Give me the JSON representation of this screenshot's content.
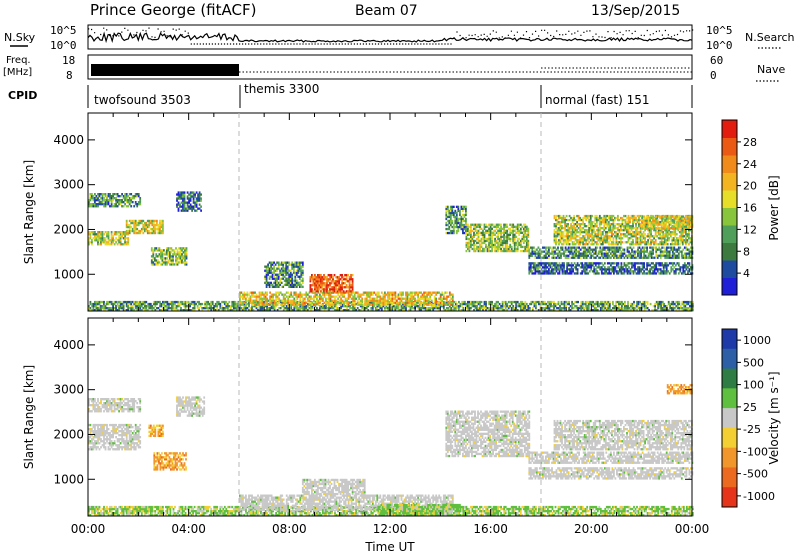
{
  "header": {
    "site": "Prince George (fitACF)",
    "beam": "Beam 07",
    "date": "13/Sep/2015"
  },
  "summary": {
    "nsky_label": "N.Sky",
    "nsky_ticks": [
      "10^5",
      "10^0"
    ],
    "nsearch_label": "N.Search",
    "nsearch_ticks": [
      "10^5",
      "10^0"
    ],
    "freq_label_1": "Freq.",
    "freq_label_2": "[MHz]",
    "freq_ticks": [
      "18",
      "8"
    ],
    "nave_label": "Nave",
    "nave_ticks": [
      "60",
      "0"
    ],
    "cpid_label": "CPID",
    "cpid_segments": [
      {
        "name": "twofsound 3503",
        "start": 0,
        "end": 6
      },
      {
        "name": "themis 3300",
        "start": 6,
        "end": 18
      },
      {
        "name": "normal (fast) 151",
        "start": 18,
        "end": 24
      }
    ]
  },
  "colorbars": {
    "power": {
      "label": "Power [dB]",
      "ticks": [
        "28",
        "24",
        "20",
        "16",
        "12",
        "8",
        "4"
      ],
      "colors": [
        "#1f1fd8",
        "#1e4aa0",
        "#3d7a3f",
        "#4f9e59",
        "#88c43c",
        "#e7de2a",
        "#f2b421",
        "#f08a1a",
        "#ea5a14",
        "#e21d0f"
      ]
    },
    "velocity": {
      "label": "Velocity [m s⁻¹]",
      "ticks": [
        "1000",
        "500",
        "100",
        "25",
        "-25",
        "-100",
        "-500",
        "-1000"
      ],
      "colors": [
        "#1d3aa8",
        "#2c5fa6",
        "#2f7d45",
        "#5fbf3f",
        "#c8c8c8",
        "#f3cf34",
        "#f0962b",
        "#ec6a1f",
        "#e53419"
      ]
    }
  },
  "chart_data": [
    {
      "type": "heatmap",
      "title": "Power",
      "xlabel": "Time UT",
      "ylabel": "Slant Range [km]",
      "xlim": [
        0,
        24
      ],
      "ylim": [
        180,
        4600
      ],
      "xticks": [
        "00:00",
        "04:00",
        "08:00",
        "12:00",
        "16:00",
        "20:00",
        "00:00"
      ],
      "yticks": [
        1000,
        2000,
        3000,
        4000
      ],
      "colorbar_ticks": [
        4,
        8,
        12,
        16,
        20,
        24,
        28
      ],
      "mode_boundaries_ut": [
        6,
        18
      ],
      "regions": [
        {
          "t0": 0.0,
          "t1": 1.6,
          "r0": 1650,
          "r1": 1950,
          "level": 0.5
        },
        {
          "t0": 0.0,
          "t1": 2.1,
          "r0": 2500,
          "r1": 2800,
          "level": 0.3
        },
        {
          "t0": 1.5,
          "t1": 3.0,
          "r0": 1900,
          "r1": 2200,
          "level": 0.55
        },
        {
          "t0": 2.5,
          "t1": 3.9,
          "r0": 1200,
          "r1": 1600,
          "level": 0.4
        },
        {
          "t0": 3.5,
          "t1": 4.5,
          "r0": 2400,
          "r1": 2850,
          "level": 0.2
        },
        {
          "t0": 0.0,
          "t1": 24.0,
          "r0": 180,
          "r1": 380,
          "level": 0.35
        },
        {
          "t0": 6.0,
          "t1": 14.5,
          "r0": 300,
          "r1": 600,
          "level": 0.6
        },
        {
          "t0": 8.8,
          "t1": 10.5,
          "r0": 600,
          "r1": 1000,
          "level": 0.85
        },
        {
          "t0": 7.0,
          "t1": 8.5,
          "r0": 700,
          "r1": 1250,
          "level": 0.3
        },
        {
          "t0": 14.2,
          "t1": 15.0,
          "r0": 1900,
          "r1": 2500,
          "level": 0.3
        },
        {
          "t0": 15.0,
          "t1": 17.5,
          "r0": 1500,
          "r1": 2100,
          "level": 0.45
        },
        {
          "t0": 17.5,
          "t1": 24.0,
          "r0": 1000,
          "r1": 1250,
          "level": 0.2
        },
        {
          "t0": 17.5,
          "t1": 24.0,
          "r0": 1350,
          "r1": 1600,
          "level": 0.3
        },
        {
          "t0": 18.5,
          "t1": 24.0,
          "r0": 1650,
          "r1": 2300,
          "level": 0.5
        },
        {
          "t0": 22.0,
          "t1": 24.0,
          "r0": 2000,
          "r1": 2300,
          "level": 0.55
        }
      ]
    },
    {
      "type": "heatmap",
      "title": "Velocity",
      "xlabel": "Time UT",
      "ylabel": "Slant Range [km]",
      "xlim": [
        0,
        24
      ],
      "ylim": [
        180,
        4600
      ],
      "xticks": [
        "00:00",
        "04:00",
        "08:00",
        "12:00",
        "16:00",
        "20:00",
        "00:00"
      ],
      "yticks": [
        1000,
        2000,
        3000,
        4000
      ],
      "colorbar_ticks": [
        1000,
        500,
        100,
        25,
        -25,
        -100,
        -500,
        -1000
      ],
      "mode_boundaries_ut": [
        6,
        18
      ],
      "regions": [
        {
          "t0": 0.0,
          "t1": 2.1,
          "r0": 1650,
          "r1": 2200,
          "vclass": "ground"
        },
        {
          "t0": 0.0,
          "t1": 2.1,
          "r0": 2500,
          "r1": 2800,
          "vclass": "ground"
        },
        {
          "t0": 2.6,
          "t1": 3.9,
          "r0": 1200,
          "r1": 1600,
          "vclass": "neg_mid"
        },
        {
          "t0": 2.4,
          "t1": 3.0,
          "r0": 1950,
          "r1": 2200,
          "vclass": "neg_mid"
        },
        {
          "t0": 3.5,
          "t1": 4.6,
          "r0": 2400,
          "r1": 2850,
          "vclass": "ground"
        },
        {
          "t0": 0.0,
          "t1": 24.0,
          "r0": 180,
          "r1": 380,
          "vclass": "pos_low"
        },
        {
          "t0": 6.0,
          "t1": 14.5,
          "r0": 300,
          "r1": 650,
          "vclass": "ground"
        },
        {
          "t0": 8.5,
          "t1": 11.0,
          "r0": 650,
          "r1": 1000,
          "vclass": "ground"
        },
        {
          "t0": 11.5,
          "t1": 14.8,
          "r0": 180,
          "r1": 450,
          "vclass": "pos_low"
        },
        {
          "t0": 14.2,
          "t1": 17.5,
          "r0": 1500,
          "r1": 2500,
          "vclass": "ground"
        },
        {
          "t0": 17.5,
          "t1": 24.0,
          "r0": 1000,
          "r1": 1250,
          "vclass": "ground"
        },
        {
          "t0": 17.5,
          "t1": 24.0,
          "r0": 1350,
          "r1": 1600,
          "vclass": "ground"
        },
        {
          "t0": 18.5,
          "t1": 24.0,
          "r0": 1650,
          "r1": 2300,
          "vclass": "ground"
        },
        {
          "t0": 23.0,
          "t1": 24.0,
          "r0": 2900,
          "r1": 3100,
          "vclass": "neg_mid"
        }
      ]
    }
  ]
}
